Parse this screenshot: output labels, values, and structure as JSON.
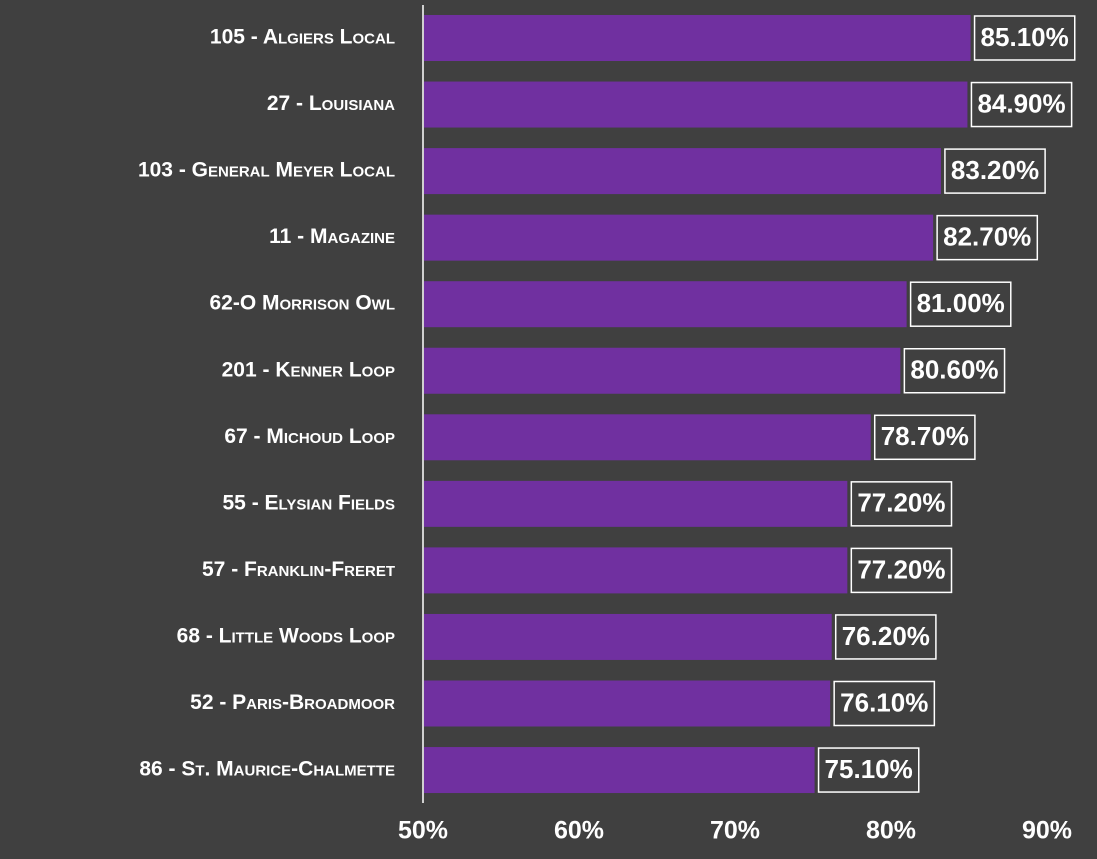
{
  "chart_data": {
    "type": "bar",
    "orientation": "horizontal",
    "categories": [
      "105 - Algiers Local",
      "27 - Louisiana",
      "103 - General Meyer Local",
      "11 - Magazine",
      "62-O Morrison Owl",
      "201 - Kenner Loop",
      "67 - Michoud Loop",
      "55 - Elysian Fields",
      "57 - Franklin-Freret",
      "68 - Little Woods Loop",
      "52 - Paris-Broadmoor",
      "86 - St. Maurice-Chalmette"
    ],
    "values": [
      85.1,
      84.9,
      83.2,
      82.7,
      81.0,
      80.6,
      78.7,
      77.2,
      77.2,
      76.2,
      76.1,
      75.1
    ],
    "value_labels": [
      "85.10%",
      "84.90%",
      "83.20%",
      "82.70%",
      "81.00%",
      "80.60%",
      "78.70%",
      "77.20%",
      "77.20%",
      "76.20%",
      "76.10%",
      "75.10%"
    ],
    "color": "#7030a0",
    "xlim": [
      50,
      90
    ],
    "xticks": [
      {
        "value": 50,
        "label": "50%"
      },
      {
        "value": 60,
        "label": "60%"
      },
      {
        "value": 70,
        "label": "70%"
      },
      {
        "value": 80,
        "label": "80%"
      },
      {
        "value": 90,
        "label": "90%"
      }
    ],
    "grid": false
  }
}
